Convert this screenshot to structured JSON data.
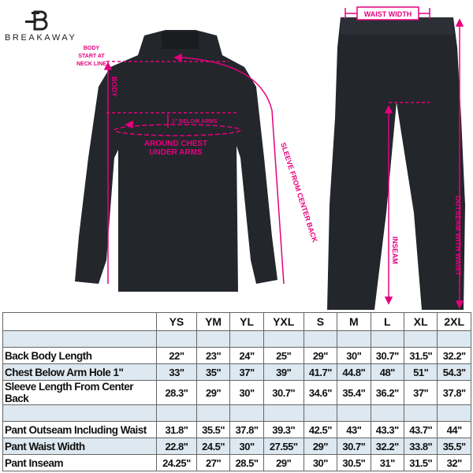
{
  "brand": {
    "name": "BREAKAWAY"
  },
  "colors": {
    "accent": "#e6007e",
    "garment": "#23262b",
    "row_highlight": "#dde8f0"
  },
  "annotations": {
    "body_start": [
      "BODY",
      "START AT",
      "NECK LINE"
    ],
    "body": "BODY",
    "below_arms": "1\" BELOW ARMS",
    "around_chest": [
      "AROUND CHEST",
      "UNDER ARMS"
    ],
    "sleeve": "SLEEVE FROM CENTER BACK",
    "waist_width": "WAIST WIDTH",
    "inseam": "INSEAM",
    "outseam": "OUTSEAM WITH WAIST"
  },
  "size_table": {
    "sizes": [
      "YS",
      "YM",
      "YL",
      "YXL",
      "S",
      "M",
      "L",
      "XL",
      "2XL"
    ],
    "rows": [
      {
        "label": "Back Body Length",
        "values": [
          "22\"",
          "23\"",
          "24\"",
          "25\"",
          "29\"",
          "30\"",
          "30.7\"",
          "31.5\"",
          "32.2\""
        ]
      },
      {
        "label": "Chest Below Arm Hole 1\"",
        "values": [
          "33\"",
          "35\"",
          "37\"",
          "39\"",
          "41.7\"",
          "44.8\"",
          "48\"",
          "51\"",
          "54.3\""
        ]
      },
      {
        "label": "Sleeve Length From Center Back",
        "values": [
          "28.3\"",
          "29\"",
          "30\"",
          "30.7\"",
          "34.6\"",
          "35.4\"",
          "36.2\"",
          "37\"",
          "37.8\""
        ]
      },
      {
        "label": "Pant Outseam Including Waist",
        "values": [
          "31.8\"",
          "35.5\"",
          "37.8\"",
          "39.3\"",
          "42.5\"",
          "43\"",
          "43.3\"",
          "43.7\"",
          "44\""
        ]
      },
      {
        "label": "Pant Waist Width",
        "values": [
          "22.8\"",
          "24.5\"",
          "30\"",
          "27.55\"",
          "29\"",
          "30.7\"",
          "32.2\"",
          "33.8\"",
          "35.5\""
        ]
      },
      {
        "label": "Pant Inseam",
        "values": [
          "24.25\"",
          "27\"",
          "28.5\"",
          "29\"",
          "30\"",
          "30.5\"",
          "31\"",
          "31.5\"",
          "32\""
        ]
      }
    ]
  }
}
